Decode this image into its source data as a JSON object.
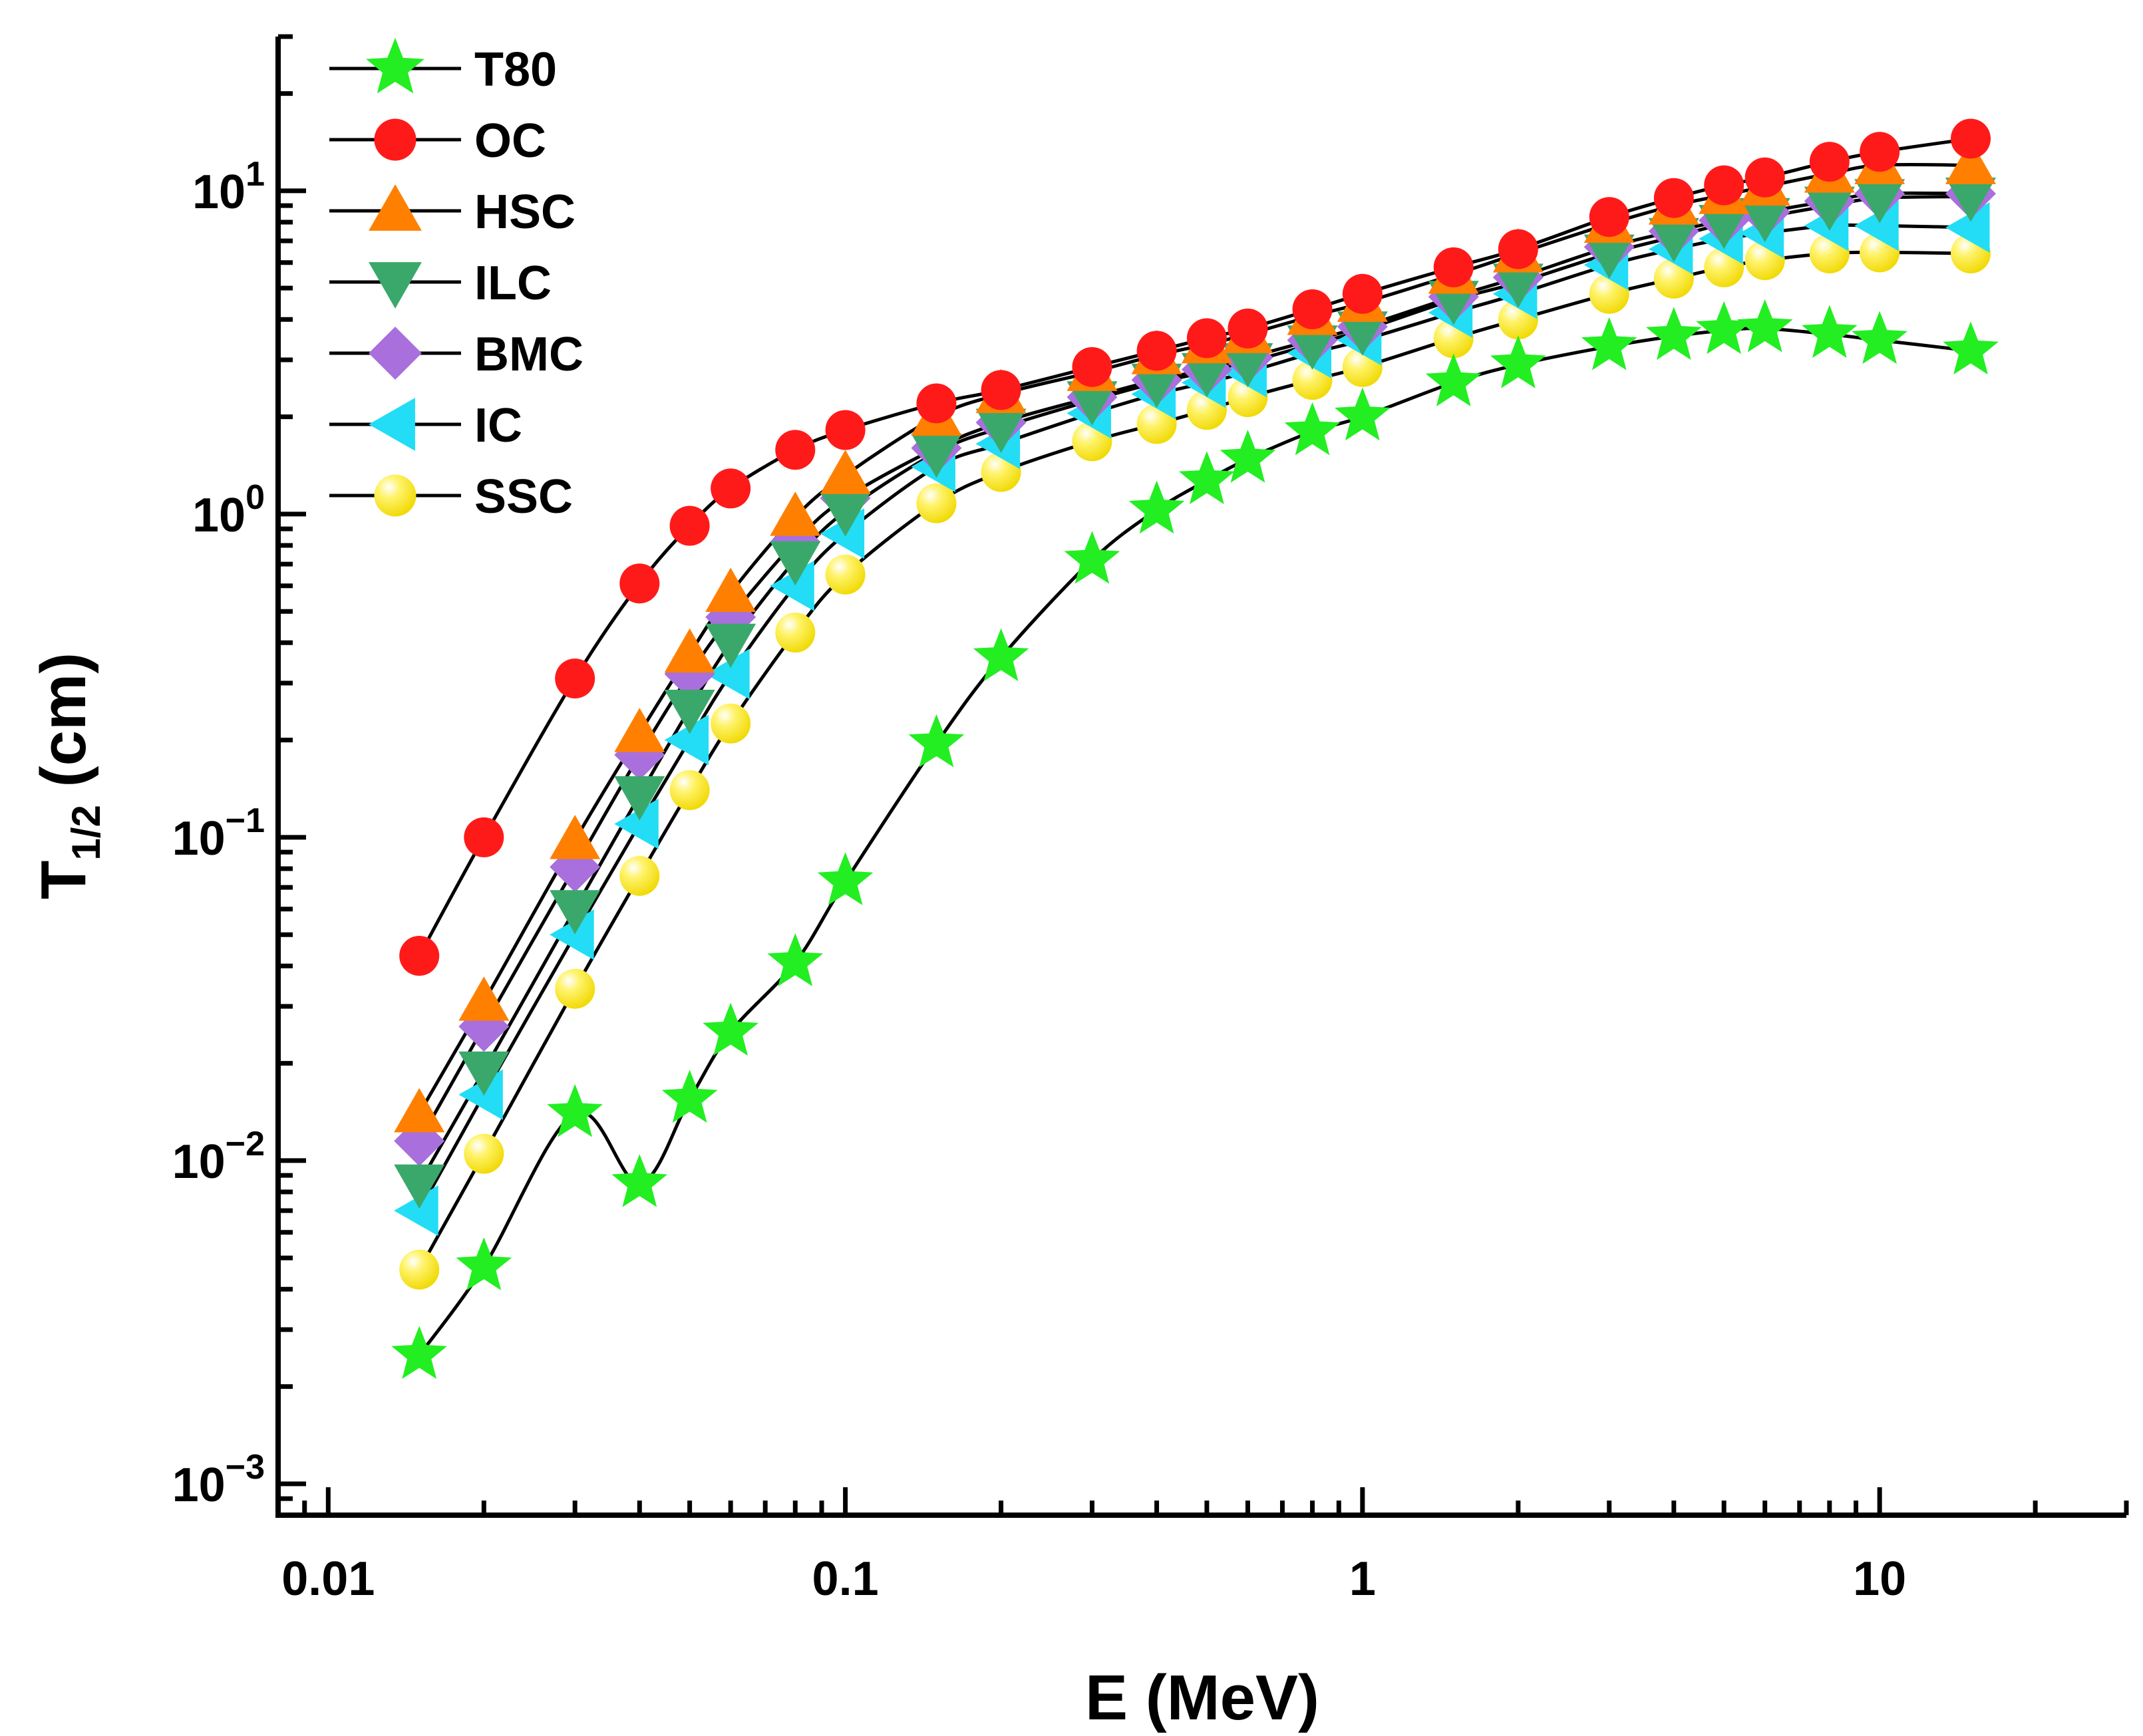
{
  "chart_data": {
    "type": "scatter",
    "title": "",
    "xlabel": "E (MeV)",
    "ylabel": "T",
    "ylabel_sub": "1/2",
    "ylabel_unit": " (cm)",
    "x_scale": "log",
    "y_scale": "log",
    "xlim": [
      0.008,
      30
    ],
    "ylim": [
      0.0008,
      30
    ],
    "x_ticks": [
      {
        "value": 0.01,
        "label": "0.01"
      },
      {
        "value": 0.1,
        "label": "0.1"
      },
      {
        "value": 1,
        "label": "1"
      },
      {
        "value": 10,
        "label": "10"
      }
    ],
    "y_ticks": [
      {
        "value": 0.001,
        "base": "10",
        "exp": "−3"
      },
      {
        "value": 0.01,
        "base": "10",
        "exp": "−2"
      },
      {
        "value": 0.1,
        "base": "10",
        "exp": "−1"
      },
      {
        "value": 1,
        "base": "10",
        "exp": "0"
      },
      {
        "value": 10,
        "base": "10",
        "exp": "1"
      }
    ],
    "legend_position": "top-left",
    "x": [
      0.015,
      0.02,
      0.03,
      0.04,
      0.05,
      0.06,
      0.08,
      0.1,
      0.15,
      0.2,
      0.3,
      0.4,
      0.5,
      0.6,
      0.8,
      1,
      1.5,
      2,
      3,
      4,
      5,
      6,
      8,
      10,
      15
    ],
    "series": [
      {
        "name": "T80",
        "marker": "star",
        "color": "#22ee22",
        "values": [
          0.0025,
          0.0047,
          0.014,
          0.0085,
          0.0155,
          0.025,
          0.041,
          0.073,
          0.195,
          0.36,
          0.72,
          1.03,
          1.27,
          1.48,
          1.8,
          2.0,
          2.55,
          2.9,
          3.3,
          3.55,
          3.7,
          3.75,
          3.6,
          3.45,
          3.2
        ]
      },
      {
        "name": "OC",
        "marker": "circle",
        "color": "#ff1a1a",
        "values": [
          0.043,
          0.1,
          0.31,
          0.61,
          0.92,
          1.2,
          1.58,
          1.82,
          2.2,
          2.42,
          2.85,
          3.2,
          3.5,
          3.75,
          4.3,
          4.8,
          5.8,
          6.6,
          8.3,
          9.5,
          10.4,
          11.0,
          12.3,
          13.2,
          14.5
        ]
      },
      {
        "name": "HSC",
        "marker": "triangle-up",
        "color": "#ff7f00",
        "values": [
          0.014,
          0.031,
          0.098,
          0.21,
          0.37,
          0.57,
          0.98,
          1.32,
          2.0,
          2.35,
          2.75,
          3.1,
          3.35,
          3.6,
          4.1,
          4.5,
          5.5,
          6.4,
          7.9,
          9.0,
          9.7,
          10.3,
          11.3,
          12.0,
          12.0
        ]
      },
      {
        "name": "ILC",
        "marker": "triangle-down",
        "color": "#3aa86a",
        "values": [
          0.0085,
          0.019,
          0.06,
          0.135,
          0.25,
          0.4,
          0.72,
          1.02,
          1.55,
          1.85,
          2.25,
          2.55,
          2.75,
          2.95,
          3.35,
          3.7,
          4.6,
          5.2,
          6.4,
          7.2,
          7.9,
          8.3,
          9.0,
          9.5,
          9.6
        ]
      },
      {
        "name": "BMC",
        "marker": "diamond",
        "color": "#a96fdc",
        "values": [
          0.0115,
          0.026,
          0.081,
          0.18,
          0.32,
          0.48,
          0.82,
          1.12,
          1.6,
          1.92,
          2.3,
          2.6,
          2.8,
          3.05,
          3.45,
          3.8,
          4.7,
          5.4,
          6.7,
          7.5,
          8.1,
          8.6,
          9.3,
          9.8,
          9.8
        ]
      },
      {
        "name": "IC",
        "marker": "triangle-left",
        "color": "#22ddf5",
        "values": [
          0.007,
          0.016,
          0.05,
          0.11,
          0.2,
          0.32,
          0.6,
          0.87,
          1.4,
          1.65,
          2.05,
          2.35,
          2.55,
          2.75,
          3.15,
          3.45,
          4.2,
          4.8,
          5.9,
          6.6,
          7.1,
          7.4,
          7.8,
          7.8,
          7.7
        ]
      },
      {
        "name": "SSC",
        "marker": "circle",
        "color": "#ffee00",
        "values": [
          0.0046,
          0.0105,
          0.034,
          0.076,
          0.14,
          0.225,
          0.43,
          0.65,
          1.08,
          1.35,
          1.68,
          1.9,
          2.1,
          2.3,
          2.6,
          2.85,
          3.5,
          4.0,
          4.8,
          5.35,
          5.8,
          6.1,
          6.4,
          6.45,
          6.4
        ]
      }
    ]
  }
}
